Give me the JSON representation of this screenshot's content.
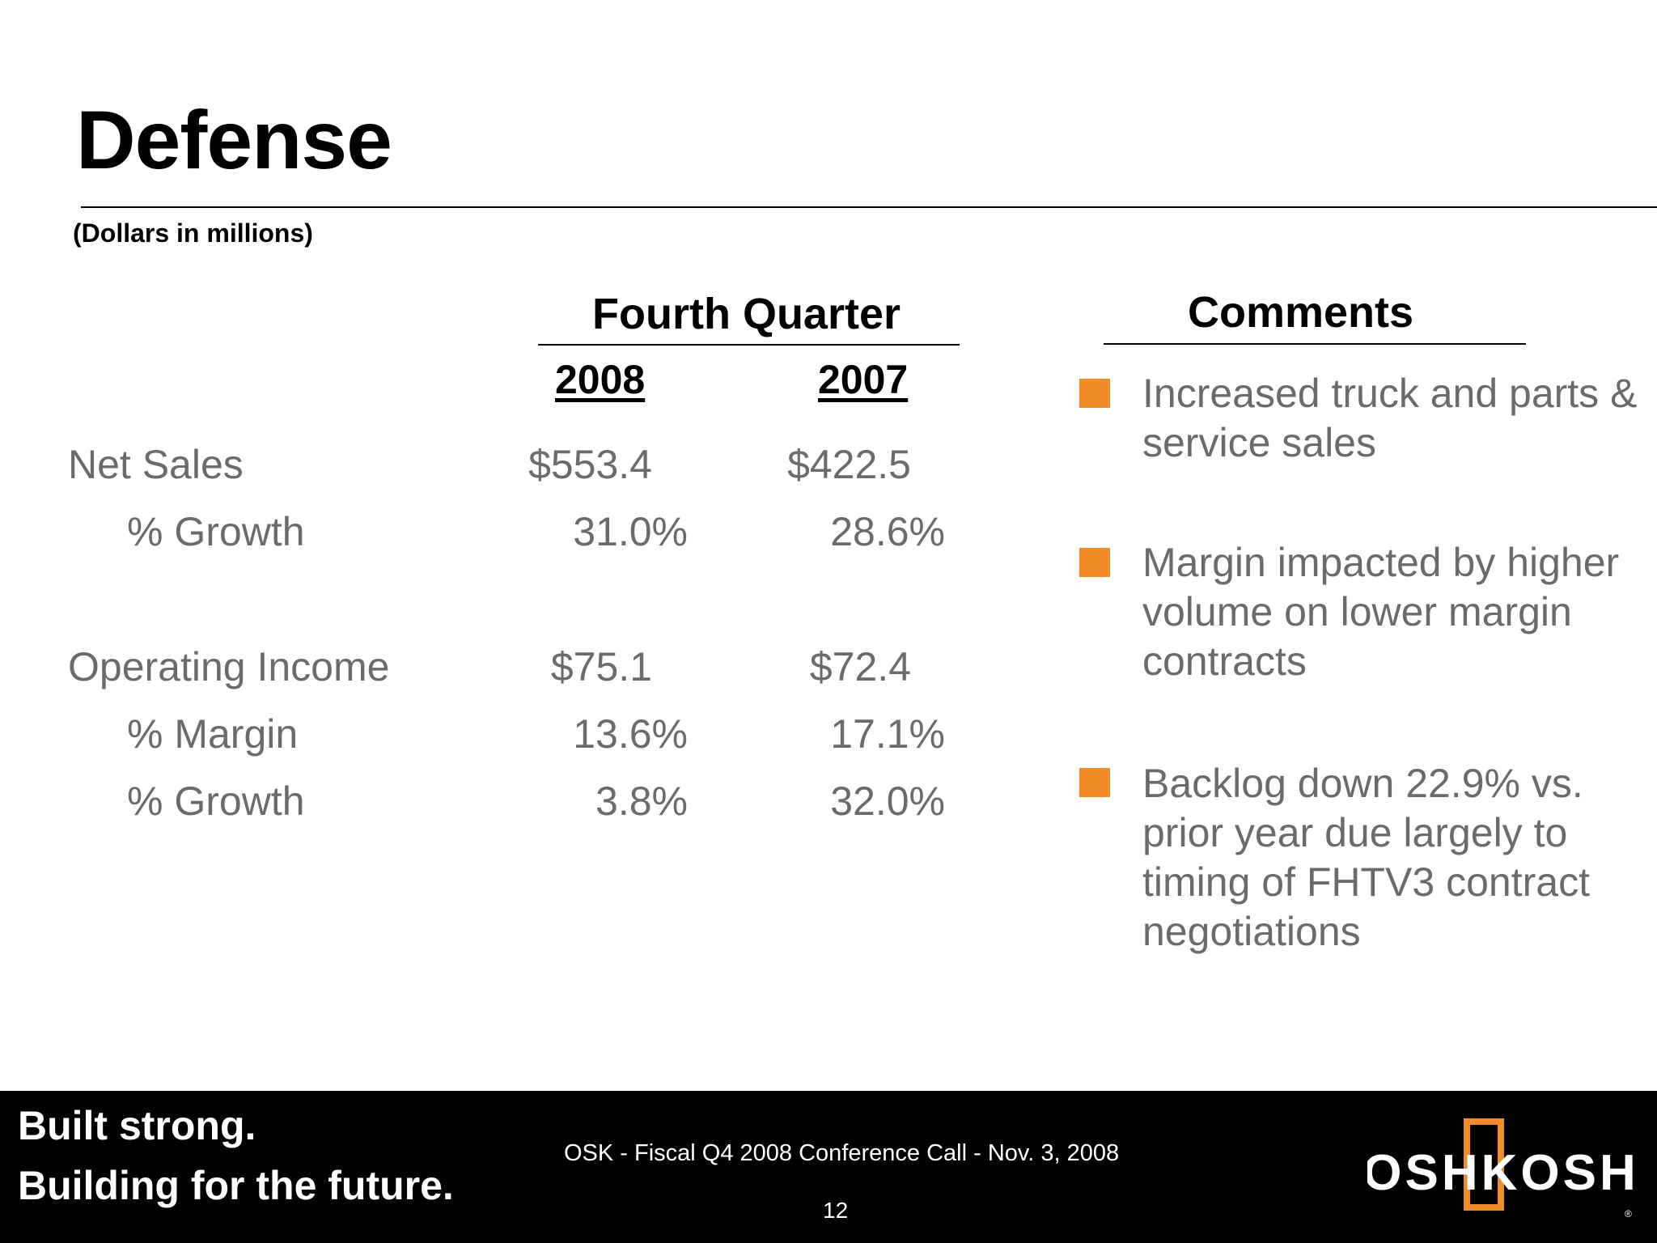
{
  "slide": {
    "title": "Defense",
    "subtitle": "(Dollars in millions)"
  },
  "table": {
    "heading": "Fourth Quarter",
    "years": [
      "2008",
      "2007"
    ],
    "rows": [
      {
        "label": "Net Sales",
        "v2008": "$553.4",
        "v2007": "$422.5"
      },
      {
        "label": "% Growth",
        "v2008": "31.0%",
        "v2007": "28.6%"
      },
      {
        "label": "Operating Income",
        "v2008": "$75.1",
        "v2007": "$72.4"
      },
      {
        "label": "% Margin",
        "v2008": "13.6%",
        "v2007": "17.1%"
      },
      {
        "label": "% Growth",
        "v2008": "3.8%",
        "v2007": "32.0%"
      }
    ]
  },
  "comments": {
    "heading": "Comments",
    "items": [
      "Increased truck and parts & service sales",
      "Margin impacted by higher volume on lower margin contracts",
      "Backlog down 22.9% vs. prior year due largely to timing of FHTV3 contract negotiations"
    ],
    "bullet_color": "#f28c28"
  },
  "footer": {
    "tagline_line1": "Built strong.",
    "tagline_line2": "Building for the future.",
    "caption": "OSK - Fiscal Q4 2008 Conference Call - Nov. 3, 2008",
    "page_number": "12",
    "logo_text": "OSHKOSH",
    "logo_accent_color": "#f28c28"
  }
}
